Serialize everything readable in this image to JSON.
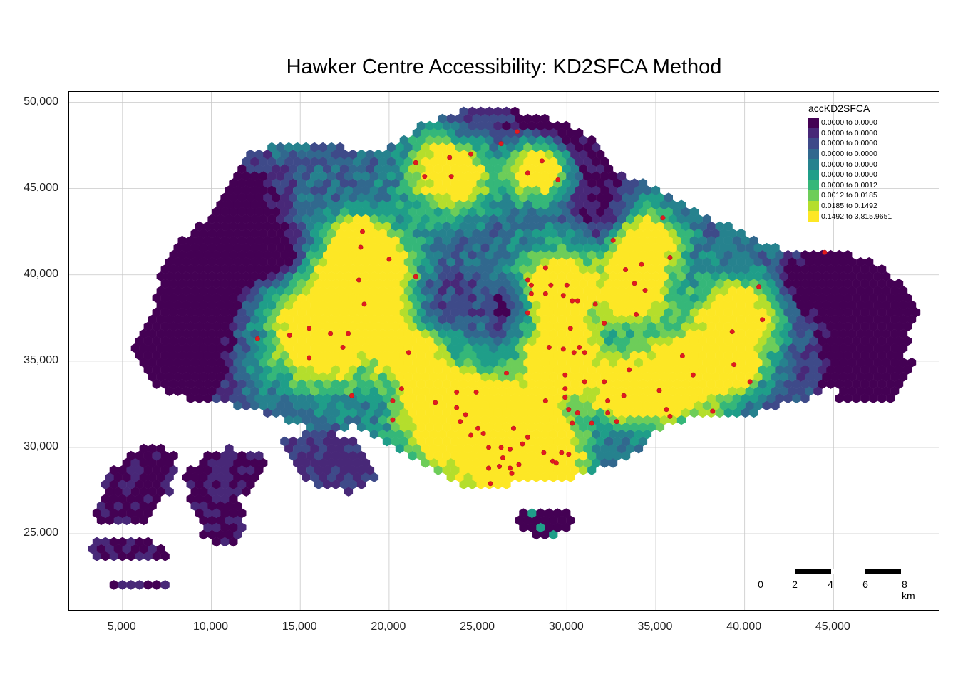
{
  "title": "Hawker Centre Accessibility: KD2SFCA Method",
  "axes": {
    "x_ticks": [
      "5,000",
      "10,000",
      "15,000",
      "20,000",
      "25,000",
      "30,000",
      "35,000",
      "40,000",
      "45,000"
    ],
    "x_tick_values": [
      5000,
      10000,
      15000,
      20000,
      25000,
      30000,
      35000,
      40000,
      45000
    ],
    "y_ticks": [
      "50,000",
      "45,000",
      "40,000",
      "35,000",
      "30,000",
      "25,000"
    ],
    "y_tick_values": [
      50000,
      45000,
      40000,
      35000,
      30000,
      25000
    ],
    "x_range": [
      2000,
      51000
    ],
    "y_range": [
      20500,
      50600
    ]
  },
  "legend": {
    "title": "accKD2SFCA",
    "classes": [
      {
        "label": "0.0000 to 0.0000",
        "color": "#440154"
      },
      {
        "label": "0.0000 to 0.0000",
        "color": "#482878"
      },
      {
        "label": "0.0000 to 0.0000",
        "color": "#3E4A89"
      },
      {
        "label": "0.0000 to 0.0000",
        "color": "#31688E"
      },
      {
        "label": "0.0000 to 0.0000",
        "color": "#26828E"
      },
      {
        "label": "0.0000 to 0.0000",
        "color": "#1F9E89"
      },
      {
        "label": "0.0000 to 0.0012",
        "color": "#35B779"
      },
      {
        "label": "0.0012 to 0.0185",
        "color": "#6DCD59"
      },
      {
        "label": "0.0185 to 0.1492",
        "color": "#B4DE2C"
      },
      {
        "label": "0.1492 to 3,815.9651",
        "color": "#FDE725"
      }
    ]
  },
  "scale_bar": {
    "labels": [
      "0",
      "2",
      "4",
      "6",
      "8 km"
    ]
  },
  "colors": {
    "grid": "#c8c8c8",
    "hawker_marker": "#E31A1C",
    "hawker_marker_outline": "#B2182B"
  },
  "regions": {
    "island_polygon": [
      [
        12000,
        47200
      ],
      [
        15500,
        47800
      ],
      [
        19500,
        47000
      ],
      [
        22000,
        48800
      ],
      [
        25000,
        49800
      ],
      [
        28500,
        49300
      ],
      [
        31500,
        48000
      ],
      [
        32500,
        46300
      ],
      [
        34500,
        45200
      ],
      [
        37500,
        43600
      ],
      [
        40500,
        42200
      ],
      [
        42500,
        41300
      ],
      [
        45500,
        41400
      ],
      [
        48000,
        40500
      ],
      [
        49700,
        38000
      ],
      [
        49200,
        35800
      ],
      [
        47800,
        33400
      ],
      [
        46000,
        34000
      ],
      [
        43500,
        32800
      ],
      [
        40500,
        32000
      ],
      [
        37500,
        31800
      ],
      [
        35500,
        31400
      ],
      [
        34500,
        30200
      ],
      [
        32200,
        28800
      ],
      [
        30000,
        28200
      ],
      [
        26500,
        27800
      ],
      [
        24000,
        27800
      ],
      [
        22500,
        28600
      ],
      [
        20000,
        30000
      ],
      [
        18000,
        31200
      ],
      [
        16000,
        31000
      ],
      [
        13000,
        32000
      ],
      [
        11000,
        32500
      ],
      [
        9000,
        32800
      ],
      [
        7500,
        33000
      ],
      [
        6500,
        34000
      ],
      [
        5500,
        35500
      ],
      [
        6200,
        37000
      ],
      [
        6800,
        38500
      ],
      [
        7000,
        40000
      ],
      [
        8000,
        41800
      ],
      [
        9500,
        43000
      ],
      [
        11000,
        45500
      ]
    ],
    "southwest_islands_polygon": [
      [
        3200,
        25000
      ],
      [
        4200,
        28500
      ],
      [
        5500,
        29700
      ],
      [
        7000,
        30200
      ],
      [
        8200,
        29500
      ],
      [
        7800,
        27500
      ],
      [
        6800,
        26500
      ],
      [
        6500,
        24800
      ],
      [
        7300,
        24200
      ],
      [
        8500,
        23000
      ],
      [
        7500,
        22000
      ],
      [
        4500,
        22000
      ],
      [
        3000,
        22800
      ]
    ],
    "jurong_island_polygon": [
      [
        8200,
        28200
      ],
      [
        9500,
        29500
      ],
      [
        11000,
        30000
      ],
      [
        13000,
        29500
      ],
      [
        12800,
        28000
      ],
      [
        11500,
        27000
      ],
      [
        12000,
        25200
      ],
      [
        11000,
        24200
      ],
      [
        9500,
        24800
      ],
      [
        9000,
        26700
      ]
    ],
    "west_islands_polygon": [
      [
        14000,
        30500
      ],
      [
        16500,
        31000
      ],
      [
        18500,
        30200
      ],
      [
        19500,
        28200
      ],
      [
        18000,
        27400
      ],
      [
        16000,
        27600
      ],
      [
        14800,
        28500
      ]
    ],
    "sentosa_polygon": [
      [
        27000,
        26600
      ],
      [
        28500,
        26500
      ],
      [
        30300,
        26300
      ],
      [
        30200,
        25300
      ],
      [
        28800,
        24700
      ],
      [
        27500,
        25200
      ]
    ],
    "tekong_polygon": [
      [
        45000,
        33800
      ],
      [
        47000,
        34800
      ],
      [
        48500,
        35500
      ],
      [
        49500,
        35000
      ],
      [
        48800,
        33000
      ],
      [
        46800,
        32400
      ],
      [
        45200,
        32800
      ]
    ],
    "hotspots": [
      [
        19200,
        39600,
        2000,
        0.96
      ],
      [
        16200,
        36500,
        2200,
        0.95
      ],
      [
        18300,
        41800,
        1100,
        0.9
      ],
      [
        23500,
        46200,
        1700,
        0.95
      ],
      [
        28500,
        46100,
        1200,
        0.93
      ],
      [
        29400,
        39300,
        1600,
        0.93
      ],
      [
        29800,
        35300,
        1500,
        0.9
      ],
      [
        26600,
        30000,
        2500,
        0.97
      ],
      [
        23000,
        32300,
        1900,
        0.9
      ],
      [
        34400,
        41800,
        1400,
        0.92
      ],
      [
        33700,
        39000,
        1300,
        0.9
      ],
      [
        39600,
        37400,
        1700,
        0.92
      ],
      [
        36300,
        33900,
        1900,
        0.93
      ],
      [
        33200,
        33200,
        1200,
        0.82
      ],
      [
        27200,
        31000,
        1300,
        0.88
      ],
      [
        21300,
        35400,
        1100,
        0.8
      ],
      [
        29000,
        29300,
        1200,
        0.85
      ],
      [
        39500,
        34500,
        900,
        0.8
      ]
    ],
    "lowspots": [
      [
        10200,
        41300,
        1600,
        -0.95
      ],
      [
        13400,
        41400,
        900,
        -0.9
      ],
      [
        11600,
        44200,
        1500,
        -0.55
      ],
      [
        47300,
        33800,
        1400,
        -0.95
      ],
      [
        48400,
        37500,
        1900,
        -0.65
      ],
      [
        29400,
        49600,
        1500,
        -0.5
      ],
      [
        26700,
        38200,
        1000,
        -0.4
      ],
      [
        22500,
        39000,
        1300,
        -0.3
      ],
      [
        31800,
        46800,
        1500,
        -0.3
      ],
      [
        46000,
        39500,
        1600,
        -0.5
      ],
      [
        8200,
        37500,
        2200,
        -0.55
      ],
      [
        32000,
        43500,
        1200,
        -0.35
      ],
      [
        43000,
        39600,
        1000,
        -0.35
      ],
      [
        24600,
        48600,
        1600,
        -0.35
      ],
      [
        6200,
        34300,
        1800,
        -0.65
      ]
    ],
    "hawker_centres": [
      [
        21500,
        46500
      ],
      [
        22000,
        45700
      ],
      [
        23400,
        46800
      ],
      [
        23500,
        45700
      ],
      [
        24600,
        47000
      ],
      [
        26300,
        47600
      ],
      [
        27200,
        48300
      ],
      [
        27800,
        45900
      ],
      [
        28600,
        46600
      ],
      [
        29500,
        45500
      ],
      [
        18500,
        42500
      ],
      [
        18400,
        41600
      ],
      [
        20000,
        40900
      ],
      [
        21500,
        39900
      ],
      [
        18300,
        39700
      ],
      [
        18600,
        38300
      ],
      [
        12600,
        36300
      ],
      [
        14400,
        36500
      ],
      [
        15500,
        36900
      ],
      [
        16700,
        36600
      ],
      [
        17700,
        36600
      ],
      [
        17400,
        35800
      ],
      [
        15500,
        35200
      ],
      [
        21100,
        35500
      ],
      [
        17900,
        33000
      ],
      [
        20700,
        33400
      ],
      [
        20200,
        32700
      ],
      [
        20200,
        31600
      ],
      [
        22600,
        32600
      ],
      [
        23800,
        33200
      ],
      [
        24900,
        33200
      ],
      [
        23800,
        32300
      ],
      [
        24000,
        31500
      ],
      [
        24300,
        31900
      ],
      [
        25000,
        31100
      ],
      [
        25300,
        30800
      ],
      [
        24600,
        30700
      ],
      [
        25600,
        30000
      ],
      [
        26300,
        30000
      ],
      [
        26800,
        29900
      ],
      [
        26400,
        29400
      ],
      [
        26200,
        28900
      ],
      [
        26800,
        28800
      ],
      [
        27300,
        29000
      ],
      [
        26900,
        28500
      ],
      [
        25600,
        28800
      ],
      [
        25700,
        27900
      ],
      [
        27500,
        30200
      ],
      [
        27800,
        30600
      ],
      [
        27000,
        31100
      ],
      [
        28700,
        29700
      ],
      [
        29200,
        29200
      ],
      [
        29700,
        29700
      ],
      [
        29400,
        29100
      ],
      [
        30100,
        29600
      ],
      [
        28800,
        32700
      ],
      [
        29900,
        32900
      ],
      [
        30100,
        32200
      ],
      [
        30600,
        32000
      ],
      [
        30300,
        31400
      ],
      [
        31400,
        31400
      ],
      [
        32300,
        32000
      ],
      [
        32800,
        31500
      ],
      [
        29900,
        33400
      ],
      [
        29900,
        34200
      ],
      [
        30200,
        36900
      ],
      [
        29000,
        35800
      ],
      [
        29800,
        35700
      ],
      [
        30400,
        35500
      ],
      [
        30700,
        35800
      ],
      [
        31000,
        35500
      ],
      [
        30300,
        38500
      ],
      [
        29800,
        38800
      ],
      [
        30600,
        38500
      ],
      [
        29100,
        39400
      ],
      [
        28800,
        38900
      ],
      [
        28000,
        38900
      ],
      [
        28000,
        39400
      ],
      [
        27800,
        39700
      ],
      [
        27800,
        37800
      ],
      [
        28800,
        40400
      ],
      [
        30000,
        39400
      ],
      [
        32100,
        37200
      ],
      [
        31600,
        38300
      ],
      [
        32600,
        42000
      ],
      [
        33300,
        40300
      ],
      [
        33800,
        39500
      ],
      [
        34200,
        40600
      ],
      [
        34400,
        39100
      ],
      [
        33900,
        37700
      ],
      [
        35400,
        43300
      ],
      [
        35800,
        41000
      ],
      [
        31000,
        33800
      ],
      [
        32100,
        33800
      ],
      [
        33200,
        33000
      ],
      [
        33500,
        34500
      ],
      [
        35200,
        33300
      ],
      [
        35600,
        32200
      ],
      [
        36500,
        35300
      ],
      [
        37100,
        34200
      ],
      [
        38200,
        32100
      ],
      [
        39400,
        34800
      ],
      [
        40300,
        33800
      ],
      [
        39300,
        36700
      ],
      [
        41000,
        37400
      ],
      [
        40800,
        39300
      ],
      [
        44500,
        41300
      ],
      [
        26600,
        34300
      ],
      [
        35800,
        31800
      ],
      [
        32300,
        32700
      ]
    ]
  }
}
